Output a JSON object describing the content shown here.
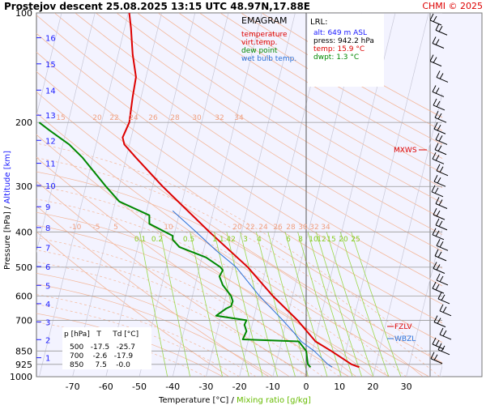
{
  "header": {
    "title": "Prostejov   descent  25.08.2025 13:15 UTC  48.97N,17.88E",
    "copyright": "CHMI © 2025"
  },
  "legend": {
    "title": "EMAGRAM",
    "items": [
      {
        "label": "temperature",
        "color": "#dd0000"
      },
      {
        "label": "virt.temp.",
        "color": "#dd0000"
      },
      {
        "label": "dew point",
        "color": "#008800"
      },
      {
        "label": "wet bulb temp.",
        "color": "#2a6fd6"
      }
    ]
  },
  "lrl": {
    "title": "LRL:",
    "lines": [
      {
        "text": "alt: 649 m ASL",
        "color": "#1a1aff"
      },
      {
        "text": "press: 942.2 hPa",
        "color": "#000000"
      },
      {
        "text": "temp: 15.9 °C",
        "color": "#dd0000"
      },
      {
        "text": "dwpt: 1.3 °C",
        "color": "#008800"
      }
    ]
  },
  "table": {
    "header": "p [hPa]   T     Td [°C]",
    "rows": [
      "500   -17.5   -25.7",
      "700    -2.6   -17.9",
      "850     7.5    -0.0"
    ]
  },
  "axes": {
    "ylabel_black": "Pressure [hPa]  /  ",
    "ylabel_blue": "Altitude [km]",
    "xlabel_black": "Temperature [°C]  /  ",
    "xlabel_green": "Mixing ratio [g/kg]"
  },
  "levels_text": {
    "mxws": "MXWS",
    "fzlv": "FZLV",
    "wbzl": "WBZL"
  },
  "chart_data": {
    "type": "line",
    "xlim": [
      -80,
      40
    ],
    "pressure_range": [
      1000,
      100
    ],
    "log_pressure": true,
    "pressure_ticks": [
      100,
      200,
      300,
      400,
      500,
      600,
      700,
      850,
      925,
      1000
    ],
    "temperature_ticks": [
      -70,
      -60,
      -50,
      -40,
      -30,
      -20,
      -10,
      0,
      10,
      20,
      30
    ],
    "altitude_ticks_km": [
      "1",
      "2",
      "3",
      "4",
      "5",
      "6",
      "7",
      "8",
      "9",
      "10",
      "11",
      "12",
      "13",
      "14",
      "15",
      "16"
    ],
    "dry_adiabat_labels_upper": [
      "15",
      "20",
      "22",
      "24",
      "26",
      "28",
      "30",
      "32",
      "34"
    ],
    "moist_adiabat_labels": [
      "-10",
      "-5",
      "5",
      "10",
      "20",
      "22",
      "24",
      "26",
      "28",
      "30",
      "32",
      "34"
    ],
    "mixing_ratio_labels": [
      "0.1",
      "0.2",
      "0.5",
      "1",
      "1.4",
      "2",
      "3",
      "4",
      "6",
      "8",
      "10",
      "12",
      "15",
      "20",
      "25"
    ],
    "series": [
      {
        "name": "temperature",
        "color": "#dd0000",
        "points": [
          [
            942,
            15.9
          ],
          [
            925,
            13.6
          ],
          [
            850,
            7.5
          ],
          [
            800,
            2.8
          ],
          [
            700,
            -2.6
          ],
          [
            600,
            -10.0
          ],
          [
            500,
            -17.5
          ],
          [
            400,
            -29.0
          ],
          [
            300,
            -43.0
          ],
          [
            250,
            -51.0
          ],
          [
            230,
            -54.5
          ],
          [
            220,
            -55.0
          ],
          [
            200,
            -53.0
          ],
          [
            170,
            -52.0
          ],
          [
            150,
            -51.0
          ],
          [
            130,
            -52.0
          ],
          [
            110,
            -52.5
          ],
          [
            100,
            -53.0
          ]
        ]
      },
      {
        "name": "dew point",
        "color": "#008800",
        "points": [
          [
            942,
            1.3
          ],
          [
            925,
            0.5
          ],
          [
            850,
            -0.0
          ],
          [
            800,
            -2.2
          ],
          [
            790,
            -19.0
          ],
          [
            750,
            -17.9
          ],
          [
            720,
            -18.5
          ],
          [
            700,
            -17.9
          ],
          [
            680,
            -27.0
          ],
          [
            650,
            -24.0
          ],
          [
            640,
            -22.5
          ],
          [
            620,
            -22.0
          ],
          [
            600,
            -22.5
          ],
          [
            560,
            -25.0
          ],
          [
            530,
            -26.0
          ],
          [
            510,
            -25.0
          ],
          [
            500,
            -25.7
          ],
          [
            470,
            -30.0
          ],
          [
            440,
            -38.0
          ],
          [
            420,
            -40.0
          ],
          [
            410,
            -40.0
          ],
          [
            380,
            -47.0
          ],
          [
            360,
            -47.0
          ],
          [
            330,
            -56.0
          ],
          [
            300,
            -60.0
          ],
          [
            250,
            -67.0
          ],
          [
            230,
            -71.0
          ],
          [
            210,
            -77.0
          ],
          [
            200,
            -80.0
          ]
        ]
      },
      {
        "name": "wet bulb temp.",
        "color": "#2a6fd6",
        "points": [
          [
            942,
            7.8
          ],
          [
            925,
            6.5
          ],
          [
            850,
            2.4
          ],
          [
            800,
            -1.5
          ],
          [
            760,
            -3.5
          ],
          [
            700,
            -7.0
          ],
          [
            600,
            -14.0
          ],
          [
            500,
            -21.0
          ],
          [
            450,
            -27.0
          ],
          [
            400,
            -33.0
          ],
          [
            350,
            -40.0
          ]
        ]
      }
    ]
  }
}
